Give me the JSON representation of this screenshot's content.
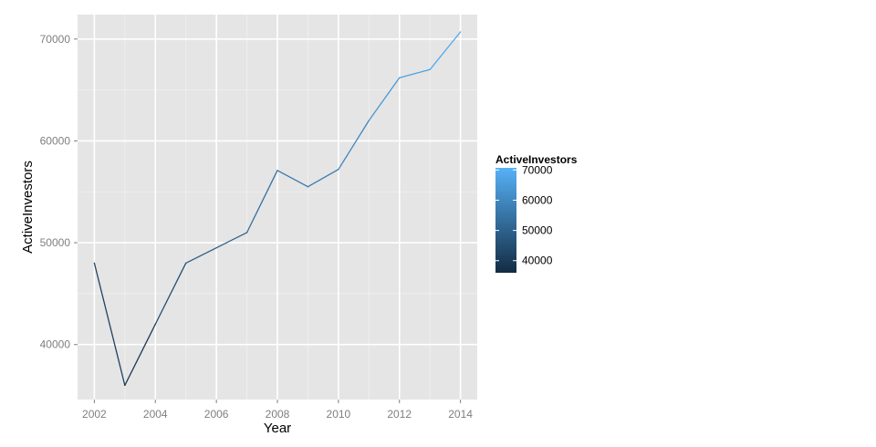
{
  "chart_data": {
    "type": "line",
    "xlabel": "Year",
    "ylabel": "ActiveInvestors",
    "x": [
      2002,
      2003,
      2004,
      2005,
      2006,
      2007,
      2008,
      2009,
      2010,
      2011,
      2012,
      2013,
      2014
    ],
    "series": [
      {
        "values": [
          48000,
          36000,
          42000,
          48000,
          49500,
          51000,
          57100,
          55500,
          57200,
          62000,
          66200,
          67000,
          70700
        ]
      }
    ],
    "xlim": [
      2001.45,
      2014.55
    ],
    "ylim": [
      34600,
      72400
    ],
    "x_ticks": [
      2002,
      2004,
      2006,
      2008,
      2010,
      2012,
      2014
    ],
    "x_tick_labels": [
      "2002",
      "2004",
      "2006",
      "2008",
      "2010",
      "2012",
      "2014"
    ],
    "y_ticks": [
      40000,
      50000,
      60000,
      70000
    ],
    "y_tick_labels": [
      "40000",
      "50000",
      "60000",
      "70000"
    ],
    "grid": true,
    "legend": {
      "title": "ActiveInvestors",
      "placement": "right",
      "type": "colorbar",
      "range": [
        36000,
        70700
      ],
      "ticks": [
        40000,
        50000,
        60000,
        70000
      ],
      "tick_labels": [
        "40000",
        "50000",
        "60000",
        "70000"
      ],
      "color_low": "#132b43",
      "color_high": "#56b1f7"
    },
    "colors": {
      "panel_background": "#e5e5e5",
      "grid_major": "#ffffff",
      "grid_minor": "#f2f2f2",
      "tick_text": "#7f7f7f"
    }
  }
}
